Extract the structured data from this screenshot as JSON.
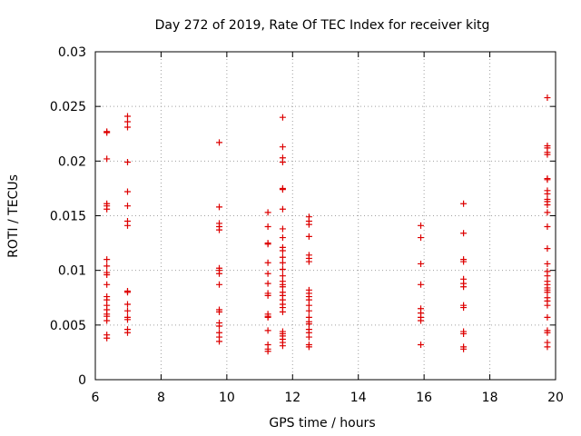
{
  "chart_data": {
    "type": "scatter",
    "title": "Day 272 of 2019, Rate Of TEC Index for receiver kitg",
    "xlabel": "GPS time / hours",
    "ylabel": "ROTI / TECUs",
    "xlim": [
      6,
      20
    ],
    "ylim": [
      0,
      0.03
    ],
    "xticks": [
      6,
      8,
      10,
      12,
      14,
      16,
      18,
      20
    ],
    "xtick_labels": [
      "6",
      "8",
      "10",
      "12",
      "14",
      "16",
      "18",
      "20"
    ],
    "yticks": [
      0,
      0.005,
      0.01,
      0.015,
      0.02,
      0.025,
      0.03
    ],
    "ytick_labels": [
      "0",
      "0.005",
      "0.01",
      "0.015",
      "0.02",
      "0.025",
      "0.03"
    ],
    "grid": true,
    "marker": "+",
    "marker_color": "#dd0000",
    "series": [
      {
        "name": "ROTI",
        "points": [
          [
            6.35,
            0.0227
          ],
          [
            6.35,
            0.0226
          ],
          [
            6.35,
            0.0202
          ],
          [
            6.35,
            0.0161
          ],
          [
            6.35,
            0.0159
          ],
          [
            6.35,
            0.0156
          ],
          [
            6.35,
            0.011
          ],
          [
            6.35,
            0.0104
          ],
          [
            6.35,
            0.0098
          ],
          [
            6.35,
            0.0096
          ],
          [
            6.35,
            0.0087
          ],
          [
            6.35,
            0.0076
          ],
          [
            6.35,
            0.0073
          ],
          [
            6.35,
            0.0068
          ],
          [
            6.35,
            0.0064
          ],
          [
            6.35,
            0.006
          ],
          [
            6.35,
            0.0058
          ],
          [
            6.35,
            0.0054
          ],
          [
            6.35,
            0.0041
          ],
          [
            6.35,
            0.0038
          ],
          [
            6.98,
            0.0241
          ],
          [
            6.98,
            0.0236
          ],
          [
            6.98,
            0.0231
          ],
          [
            6.98,
            0.0199
          ],
          [
            6.98,
            0.0172
          ],
          [
            6.98,
            0.0159
          ],
          [
            6.98,
            0.0145
          ],
          [
            6.98,
            0.0141
          ],
          [
            6.98,
            0.0081
          ],
          [
            6.98,
            0.008
          ],
          [
            6.98,
            0.0069
          ],
          [
            6.98,
            0.0063
          ],
          [
            6.98,
            0.0057
          ],
          [
            6.98,
            0.0055
          ],
          [
            6.98,
            0.0046
          ],
          [
            6.98,
            0.0043
          ],
          [
            9.77,
            0.0217
          ],
          [
            9.77,
            0.0158
          ],
          [
            9.77,
            0.0143
          ],
          [
            9.77,
            0.014
          ],
          [
            9.77,
            0.0137
          ],
          [
            9.77,
            0.0102
          ],
          [
            9.77,
            0.01
          ],
          [
            9.77,
            0.0097
          ],
          [
            9.77,
            0.0087
          ],
          [
            9.77,
            0.0064
          ],
          [
            9.77,
            0.0062
          ],
          [
            9.77,
            0.0052
          ],
          [
            9.77,
            0.0049
          ],
          [
            9.77,
            0.0043
          ],
          [
            9.77,
            0.0039
          ],
          [
            9.77,
            0.0035
          ],
          [
            11.25,
            0.0153
          ],
          [
            11.25,
            0.014
          ],
          [
            11.25,
            0.0125
          ],
          [
            11.25,
            0.0124
          ],
          [
            11.25,
            0.0107
          ],
          [
            11.25,
            0.0097
          ],
          [
            11.25,
            0.0088
          ],
          [
            11.25,
            0.0079
          ],
          [
            11.25,
            0.0077
          ],
          [
            11.25,
            0.006
          ],
          [
            11.25,
            0.0058
          ],
          [
            11.25,
            0.0057
          ],
          [
            11.25,
            0.0045
          ],
          [
            11.25,
            0.0032
          ],
          [
            11.25,
            0.0028
          ],
          [
            11.25,
            0.0026
          ],
          [
            11.7,
            0.024
          ],
          [
            11.7,
            0.0213
          ],
          [
            11.7,
            0.0203
          ],
          [
            11.7,
            0.0199
          ],
          [
            11.7,
            0.0175
          ],
          [
            11.7,
            0.0174
          ],
          [
            11.7,
            0.0156
          ],
          [
            11.7,
            0.0138
          ],
          [
            11.7,
            0.013
          ],
          [
            11.7,
            0.0121
          ],
          [
            11.7,
            0.0118
          ],
          [
            11.7,
            0.0112
          ],
          [
            11.7,
            0.0107
          ],
          [
            11.7,
            0.0101
          ],
          [
            11.7,
            0.0095
          ],
          [
            11.7,
            0.009
          ],
          [
            11.7,
            0.0087
          ],
          [
            11.7,
            0.0085
          ],
          [
            11.7,
            0.008
          ],
          [
            11.7,
            0.0077
          ],
          [
            11.7,
            0.0073
          ],
          [
            11.7,
            0.0069
          ],
          [
            11.7,
            0.0066
          ],
          [
            11.7,
            0.0062
          ],
          [
            11.7,
            0.0044
          ],
          [
            11.7,
            0.0042
          ],
          [
            11.7,
            0.004
          ],
          [
            11.7,
            0.0037
          ],
          [
            11.7,
            0.0034
          ],
          [
            11.7,
            0.0031
          ],
          [
            12.5,
            0.0149
          ],
          [
            12.5,
            0.0145
          ],
          [
            12.5,
            0.0142
          ],
          [
            12.5,
            0.0131
          ],
          [
            12.5,
            0.0114
          ],
          [
            12.5,
            0.0111
          ],
          [
            12.5,
            0.0108
          ],
          [
            12.5,
            0.0082
          ],
          [
            12.5,
            0.0079
          ],
          [
            12.5,
            0.0076
          ],
          [
            12.5,
            0.0073
          ],
          [
            12.5,
            0.0068
          ],
          [
            12.5,
            0.0063
          ],
          [
            12.5,
            0.0057
          ],
          [
            12.5,
            0.0053
          ],
          [
            12.5,
            0.0051
          ],
          [
            12.5,
            0.0046
          ],
          [
            12.5,
            0.0043
          ],
          [
            12.5,
            0.0039
          ],
          [
            12.5,
            0.0032
          ],
          [
            12.5,
            0.003
          ],
          [
            15.9,
            0.0141
          ],
          [
            15.9,
            0.013
          ],
          [
            15.9,
            0.0106
          ],
          [
            15.9,
            0.0087
          ],
          [
            15.9,
            0.0065
          ],
          [
            15.9,
            0.0061
          ],
          [
            15.9,
            0.0057
          ],
          [
            15.9,
            0.0054
          ],
          [
            15.9,
            0.0032
          ],
          [
            17.2,
            0.0161
          ],
          [
            17.2,
            0.0134
          ],
          [
            17.2,
            0.011
          ],
          [
            17.2,
            0.0108
          ],
          [
            17.2,
            0.0092
          ],
          [
            17.2,
            0.0088
          ],
          [
            17.2,
            0.0085
          ],
          [
            17.2,
            0.0068
          ],
          [
            17.2,
            0.0066
          ],
          [
            17.2,
            0.0044
          ],
          [
            17.2,
            0.0042
          ],
          [
            17.2,
            0.003
          ],
          [
            17.2,
            0.0028
          ],
          [
            19.75,
            0.0258
          ],
          [
            19.75,
            0.0214
          ],
          [
            19.75,
            0.0212
          ],
          [
            19.75,
            0.0208
          ],
          [
            19.75,
            0.0206
          ],
          [
            19.75,
            0.0184
          ],
          [
            19.75,
            0.0183
          ],
          [
            19.75,
            0.0173
          ],
          [
            19.75,
            0.017
          ],
          [
            19.75,
            0.0165
          ],
          [
            19.75,
            0.0163
          ],
          [
            19.75,
            0.016
          ],
          [
            19.75,
            0.0153
          ],
          [
            19.75,
            0.014
          ],
          [
            19.75,
            0.012
          ],
          [
            19.75,
            0.0106
          ],
          [
            19.75,
            0.0099
          ],
          [
            19.75,
            0.0095
          ],
          [
            19.75,
            0.009
          ],
          [
            19.75,
            0.0087
          ],
          [
            19.75,
            0.0084
          ],
          [
            19.75,
            0.0082
          ],
          [
            19.75,
            0.008
          ],
          [
            19.75,
            0.0075
          ],
          [
            19.75,
            0.0072
          ],
          [
            19.75,
            0.0068
          ],
          [
            19.75,
            0.0057
          ],
          [
            19.75,
            0.0045
          ],
          [
            19.75,
            0.0043
          ],
          [
            19.75,
            0.0034
          ],
          [
            19.75,
            0.003
          ]
        ]
      }
    ]
  }
}
